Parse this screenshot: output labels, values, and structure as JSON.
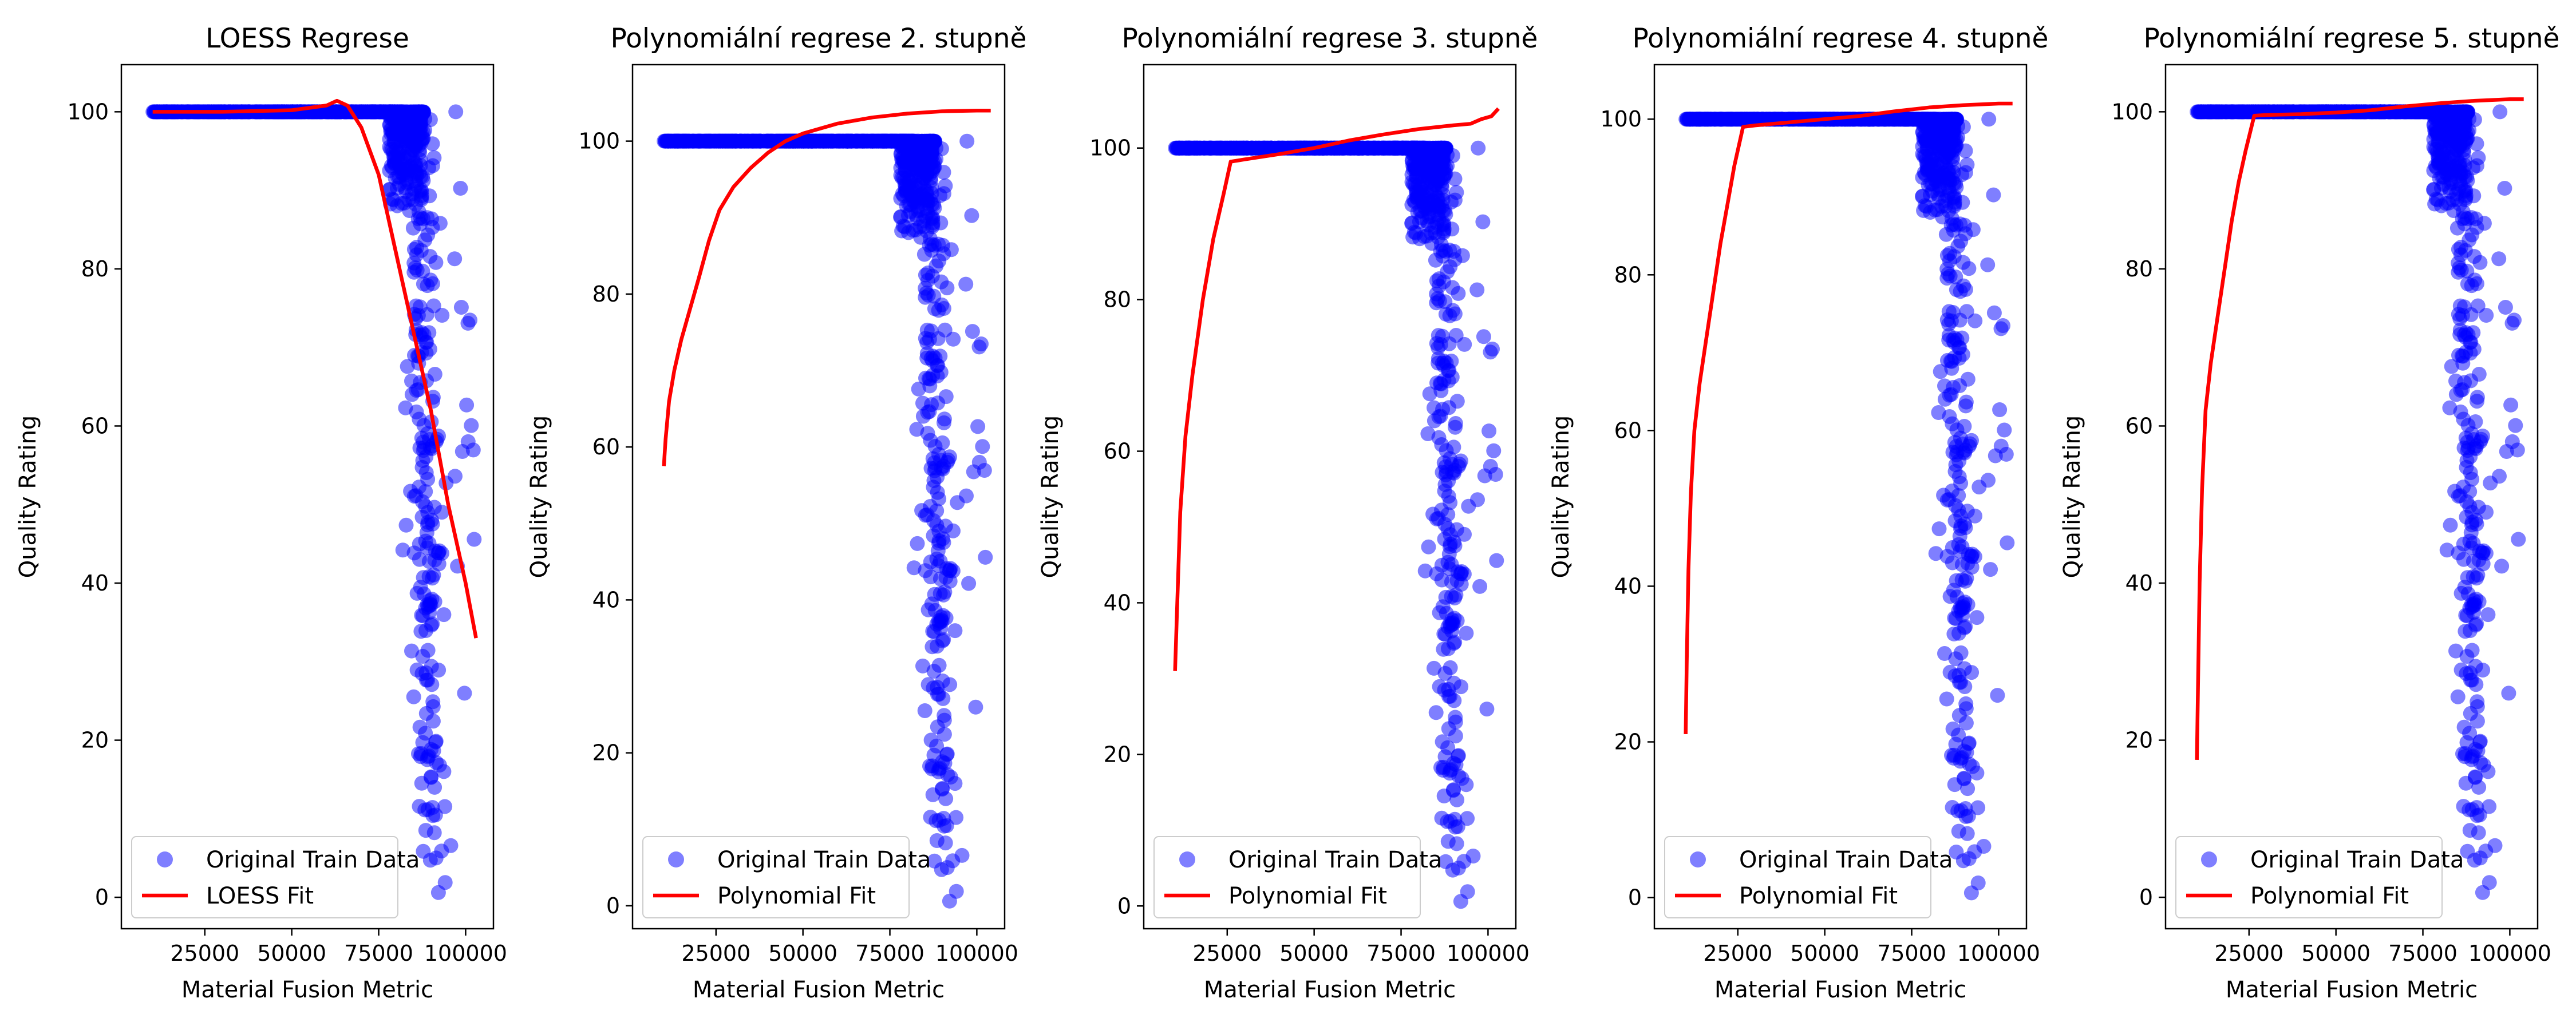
{
  "chart_data": [
    {
      "type": "scatter",
      "title": "LOESS Regrese",
      "xlabel": "Material Fusion Metric",
      "ylabel": "Quality Rating",
      "xlim": [
        1000,
        108000
      ],
      "ylim": [
        -4,
        106
      ],
      "xticks": [
        25000,
        50000,
        75000,
        100000
      ],
      "xtick_labels": [
        "25000",
        "50000",
        "75000",
        "100000"
      ],
      "yticks": [
        0,
        20,
        40,
        60,
        80,
        100
      ],
      "ytick_labels": [
        "0",
        "20",
        "40",
        "60",
        "80",
        "100"
      ],
      "legend_position": "lower left",
      "series": [
        {
          "name": "Original Train Data",
          "kind": "scatter",
          "color": "#0000ff"
        },
        {
          "name": "LOESS Fit",
          "kind": "line",
          "color": "#ff0000",
          "x": [
            10000,
            30000,
            50000,
            60000,
            63000,
            66000,
            70000,
            75000,
            80000,
            85000,
            90000,
            95000,
            100000,
            103000
          ],
          "y": [
            100,
            100,
            100.2,
            100.8,
            101.4,
            100.8,
            98,
            92,
            82,
            72,
            62,
            50,
            40,
            33
          ]
        }
      ]
    },
    {
      "type": "scatter",
      "title": "Polynomiální regrese 2. stupně",
      "xlabel": "Material Fusion Metric",
      "ylabel": "Quality Rating",
      "xlim": [
        1000,
        108000
      ],
      "ylim": [
        -3,
        110
      ],
      "xticks": [
        25000,
        50000,
        75000,
        100000
      ],
      "xtick_labels": [
        "25000",
        "50000",
        "75000",
        "100000"
      ],
      "yticks": [
        0,
        20,
        40,
        60,
        80,
        100
      ],
      "ytick_labels": [
        "0",
        "20",
        "40",
        "60",
        "80",
        "100"
      ],
      "legend_position": "lower left",
      "series": [
        {
          "name": "Original Train Data",
          "kind": "scatter",
          "color": "#0000ff"
        },
        {
          "name": "Polynomial Fit",
          "kind": "line",
          "color": "#ff0000",
          "x": [
            10000,
            10500,
            11500,
            13000,
            15000,
            17500,
            20000,
            23000,
            26000,
            30000,
            35000,
            40000,
            45000,
            50000,
            60000,
            70000,
            80000,
            90000,
            100000,
            104000
          ],
          "y": [
            57.5,
            61,
            66,
            70,
            74,
            78,
            82,
            87,
            91,
            94,
            96.5,
            98.5,
            100,
            101,
            102.3,
            103.1,
            103.6,
            103.9,
            104,
            104
          ]
        }
      ]
    },
    {
      "type": "scatter",
      "title": "Polynomiální regrese 3. stupně",
      "xlabel": "Material Fusion Metric",
      "ylabel": "Quality Rating",
      "xlim": [
        1000,
        108000
      ],
      "ylim": [
        -3,
        111
      ],
      "xticks": [
        25000,
        50000,
        75000,
        100000
      ],
      "xtick_labels": [
        "25000",
        "50000",
        "75000",
        "100000"
      ],
      "yticks": [
        0,
        20,
        40,
        60,
        80,
        100
      ],
      "ytick_labels": [
        "0",
        "20",
        "40",
        "60",
        "80",
        "100"
      ],
      "legend_position": "lower left",
      "series": [
        {
          "name": "Original Train Data",
          "kind": "scatter",
          "color": "#0000ff"
        },
        {
          "name": "Polynomial Fit",
          "kind": "line",
          "color": "#ff0000",
          "x": [
            10000,
            10500,
            11500,
            13000,
            15000,
            18000,
            21000,
            24000,
            26000,
            30000,
            40000,
            50000,
            60000,
            70000,
            80000,
            90000,
            95000,
            98000,
            101000,
            103000
          ],
          "y": [
            31,
            38,
            52,
            62,
            70,
            80,
            88,
            94,
            98.2,
            98.5,
            99.2,
            100,
            101,
            101.8,
            102.5,
            103,
            103.2,
            103.8,
            104.2,
            105.2
          ]
        }
      ]
    },
    {
      "type": "scatter",
      "title": "Polynomiální regrese 4. stupně",
      "xlabel": "Material Fusion Metric",
      "ylabel": "Quality Rating",
      "xlim": [
        1000,
        108000
      ],
      "ylim": [
        -4,
        107
      ],
      "xticks": [
        25000,
        50000,
        75000,
        100000
      ],
      "xtick_labels": [
        "25000",
        "50000",
        "75000",
        "100000"
      ],
      "yticks": [
        0,
        20,
        40,
        60,
        80,
        100
      ],
      "ytick_labels": [
        "0",
        "20",
        "40",
        "60",
        "80",
        "100"
      ],
      "legend_position": "lower left",
      "series": [
        {
          "name": "Original Train Data",
          "kind": "scatter",
          "color": "#0000ff"
        },
        {
          "name": "Polynomial Fit",
          "kind": "line",
          "color": "#ff0000",
          "x": [
            10000,
            10300,
            10800,
            11500,
            12500,
            14000,
            16000,
            18000,
            20000,
            22000,
            24000,
            26500,
            30000,
            40000,
            50000,
            60000,
            70000,
            80000,
            90000,
            100000,
            104000
          ],
          "y": [
            21,
            30,
            42,
            52,
            60,
            66,
            72,
            78,
            84,
            89,
            94,
            99,
            99.2,
            99.6,
            100,
            100.4,
            101,
            101.5,
            101.8,
            102,
            102
          ]
        }
      ]
    },
    {
      "type": "scatter",
      "title": "Polynomiální regrese 5. stupně",
      "xlabel": "Material Fusion Metric",
      "ylabel": "Quality Rating",
      "xlim": [
        1000,
        108000
      ],
      "ylim": [
        -4,
        106
      ],
      "xticks": [
        25000,
        50000,
        75000,
        100000
      ],
      "xtick_labels": [
        "25000",
        "50000",
        "75000",
        "100000"
      ],
      "yticks": [
        0,
        20,
        40,
        60,
        80,
        100
      ],
      "ytick_labels": [
        "0",
        "20",
        "40",
        "60",
        "80",
        "100"
      ],
      "legend_position": "lower left",
      "series": [
        {
          "name": "Original Train Data",
          "kind": "scatter",
          "color": "#0000ff"
        },
        {
          "name": "Polynomial Fit",
          "kind": "line",
          "color": "#ff0000",
          "x": [
            10000,
            10300,
            10800,
            11500,
            12500,
            14000,
            16000,
            18000,
            20000,
            22000,
            24000,
            26500,
            30000,
            40000,
            50000,
            60000,
            70000,
            80000,
            90000,
            100000,
            104000
          ],
          "y": [
            17.5,
            26,
            40,
            52,
            62,
            68,
            74,
            80,
            86,
            91,
            95,
            99.5,
            99.6,
            99.7,
            99.9,
            100.2,
            100.7,
            101.1,
            101.4,
            101.6,
            101.6
          ]
        }
      ]
    }
  ]
}
